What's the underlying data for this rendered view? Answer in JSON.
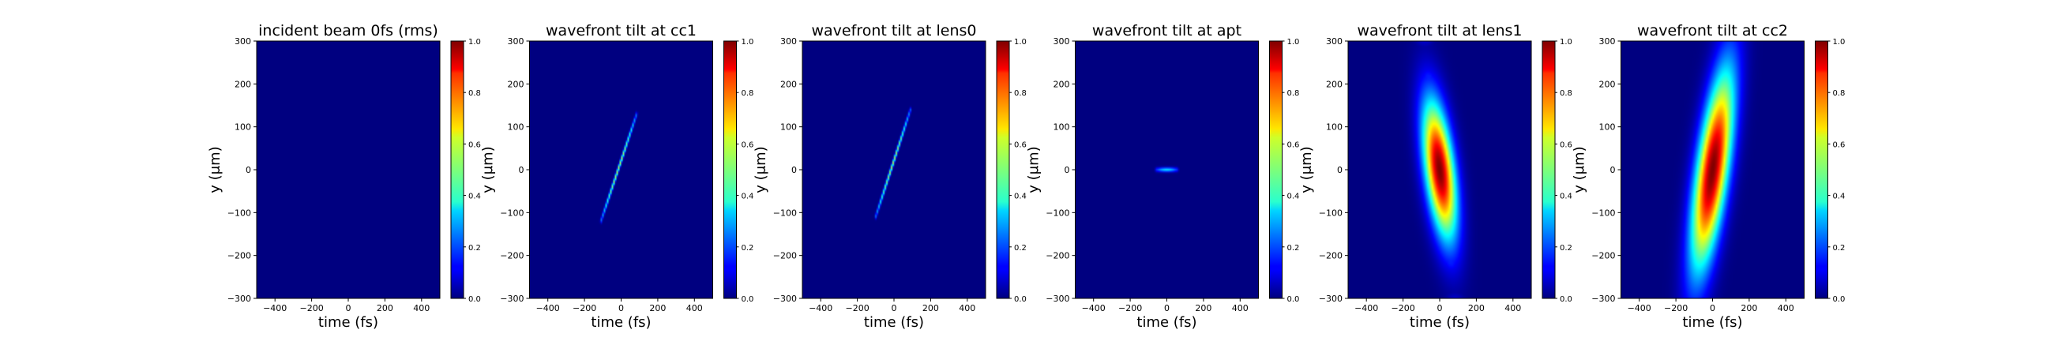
{
  "chart_data": [
    {
      "type": "heatmap",
      "title": "incident beam 0fs (rms)",
      "xlabel": "time (fs)",
      "ylabel": "y (μm)",
      "xlim": [
        -500,
        500
      ],
      "ylim": [
        -300,
        300
      ],
      "x_ticks": [
        -400,
        -200,
        0,
        200,
        400
      ],
      "y_ticks": [
        -300,
        -200,
        -100,
        0,
        100,
        200,
        300
      ],
      "colorbar": {
        "range": [
          0.0,
          1.0
        ],
        "ticks": [
          0.0,
          0.2,
          0.4,
          0.6,
          0.8,
          1.0
        ],
        "colormap": "jet"
      },
      "features": []
    },
    {
      "type": "heatmap",
      "title": "wavefront tilt at cc1",
      "xlabel": "time (fs)",
      "ylabel": "y (μm)",
      "xlim": [
        -500,
        500
      ],
      "ylim": [
        -300,
        300
      ],
      "x_ticks": [
        -400,
        -200,
        0,
        200,
        400
      ],
      "y_ticks": [
        -300,
        -200,
        -100,
        0,
        100,
        200,
        300
      ],
      "colorbar": {
        "range": [
          0.0,
          1.0
        ],
        "ticks": [
          0.0,
          0.2,
          0.4,
          0.6,
          0.8,
          1.0
        ],
        "colormap": "jet"
      },
      "features": [
        {
          "kind": "streak",
          "t_start": -110,
          "y_start": -120,
          "t_end": 85,
          "y_end": 130,
          "peak": 0.55
        }
      ]
    },
    {
      "type": "heatmap",
      "title": "wavefront tilt at lens0",
      "xlabel": "time (fs)",
      "ylabel": "y (μm)",
      "xlim": [
        -500,
        500
      ],
      "ylim": [
        -300,
        300
      ],
      "x_ticks": [
        -400,
        -200,
        0,
        200,
        400
      ],
      "y_ticks": [
        -300,
        -200,
        -100,
        0,
        100,
        200,
        300
      ],
      "colorbar": {
        "range": [
          0.0,
          1.0
        ],
        "ticks": [
          0.0,
          0.2,
          0.4,
          0.6,
          0.8,
          1.0
        ],
        "colormap": "jet"
      },
      "features": [
        {
          "kind": "streak",
          "t_start": -100,
          "y_start": -110,
          "t_end": 90,
          "y_end": 140,
          "peak": 0.55
        }
      ]
    },
    {
      "type": "heatmap",
      "title": "wavefront tilt at apt",
      "xlabel": "time (fs)",
      "ylabel": "y (μm)",
      "xlim": [
        -500,
        500
      ],
      "ylim": [
        -300,
        300
      ],
      "x_ticks": [
        -400,
        -200,
        0,
        200,
        400
      ],
      "y_ticks": [
        -300,
        -200,
        -100,
        0,
        100,
        200,
        300
      ],
      "colorbar": {
        "range": [
          0.0,
          1.0
        ],
        "ticks": [
          0.0,
          0.2,
          0.4,
          0.6,
          0.8,
          1.0
        ],
        "colormap": "jet"
      },
      "features": [
        {
          "kind": "streak",
          "t_start": -60,
          "y_start": 0,
          "t_end": 60,
          "y_end": 0,
          "peak": 0.35
        }
      ]
    },
    {
      "type": "heatmap",
      "title": "wavefront tilt at lens1",
      "xlabel": "time (fs)",
      "ylabel": "y (μm)",
      "xlim": [
        -500,
        500
      ],
      "ylim": [
        -300,
        300
      ],
      "x_ticks": [
        -400,
        -200,
        0,
        200,
        400
      ],
      "y_ticks": [
        -300,
        -200,
        -100,
        0,
        100,
        200,
        300
      ],
      "colorbar": {
        "range": [
          0.0,
          1.0
        ],
        "ticks": [
          0.0,
          0.2,
          0.4,
          0.6,
          0.8,
          1.0
        ],
        "colormap": "jet"
      },
      "features": [
        {
          "kind": "blob",
          "t_center": 0,
          "y_center": 0,
          "t_sigma": 55,
          "y_sigma": 110,
          "tilt": -0.28,
          "peak": 1.0,
          "sidelobes": true
        }
      ]
    },
    {
      "type": "heatmap",
      "title": "wavefront tilt at cc2",
      "xlabel": "time (fs)",
      "ylabel": "y (μm)",
      "xlim": [
        -500,
        500
      ],
      "ylim": [
        -300,
        300
      ],
      "x_ticks": [
        -400,
        -200,
        0,
        200,
        400
      ],
      "y_ticks": [
        -300,
        -200,
        -100,
        0,
        100,
        200,
        300
      ],
      "colorbar": {
        "range": [
          0.0,
          1.0
        ],
        "ticks": [
          0.0,
          0.2,
          0.4,
          0.6,
          0.8,
          1.0
        ],
        "colormap": "jet"
      },
      "features": [
        {
          "kind": "blob",
          "t_center": 0,
          "y_center": 0,
          "t_sigma": 60,
          "y_sigma": 160,
          "tilt": 0.32,
          "peak": 1.0,
          "sidelobes": false
        }
      ]
    }
  ]
}
